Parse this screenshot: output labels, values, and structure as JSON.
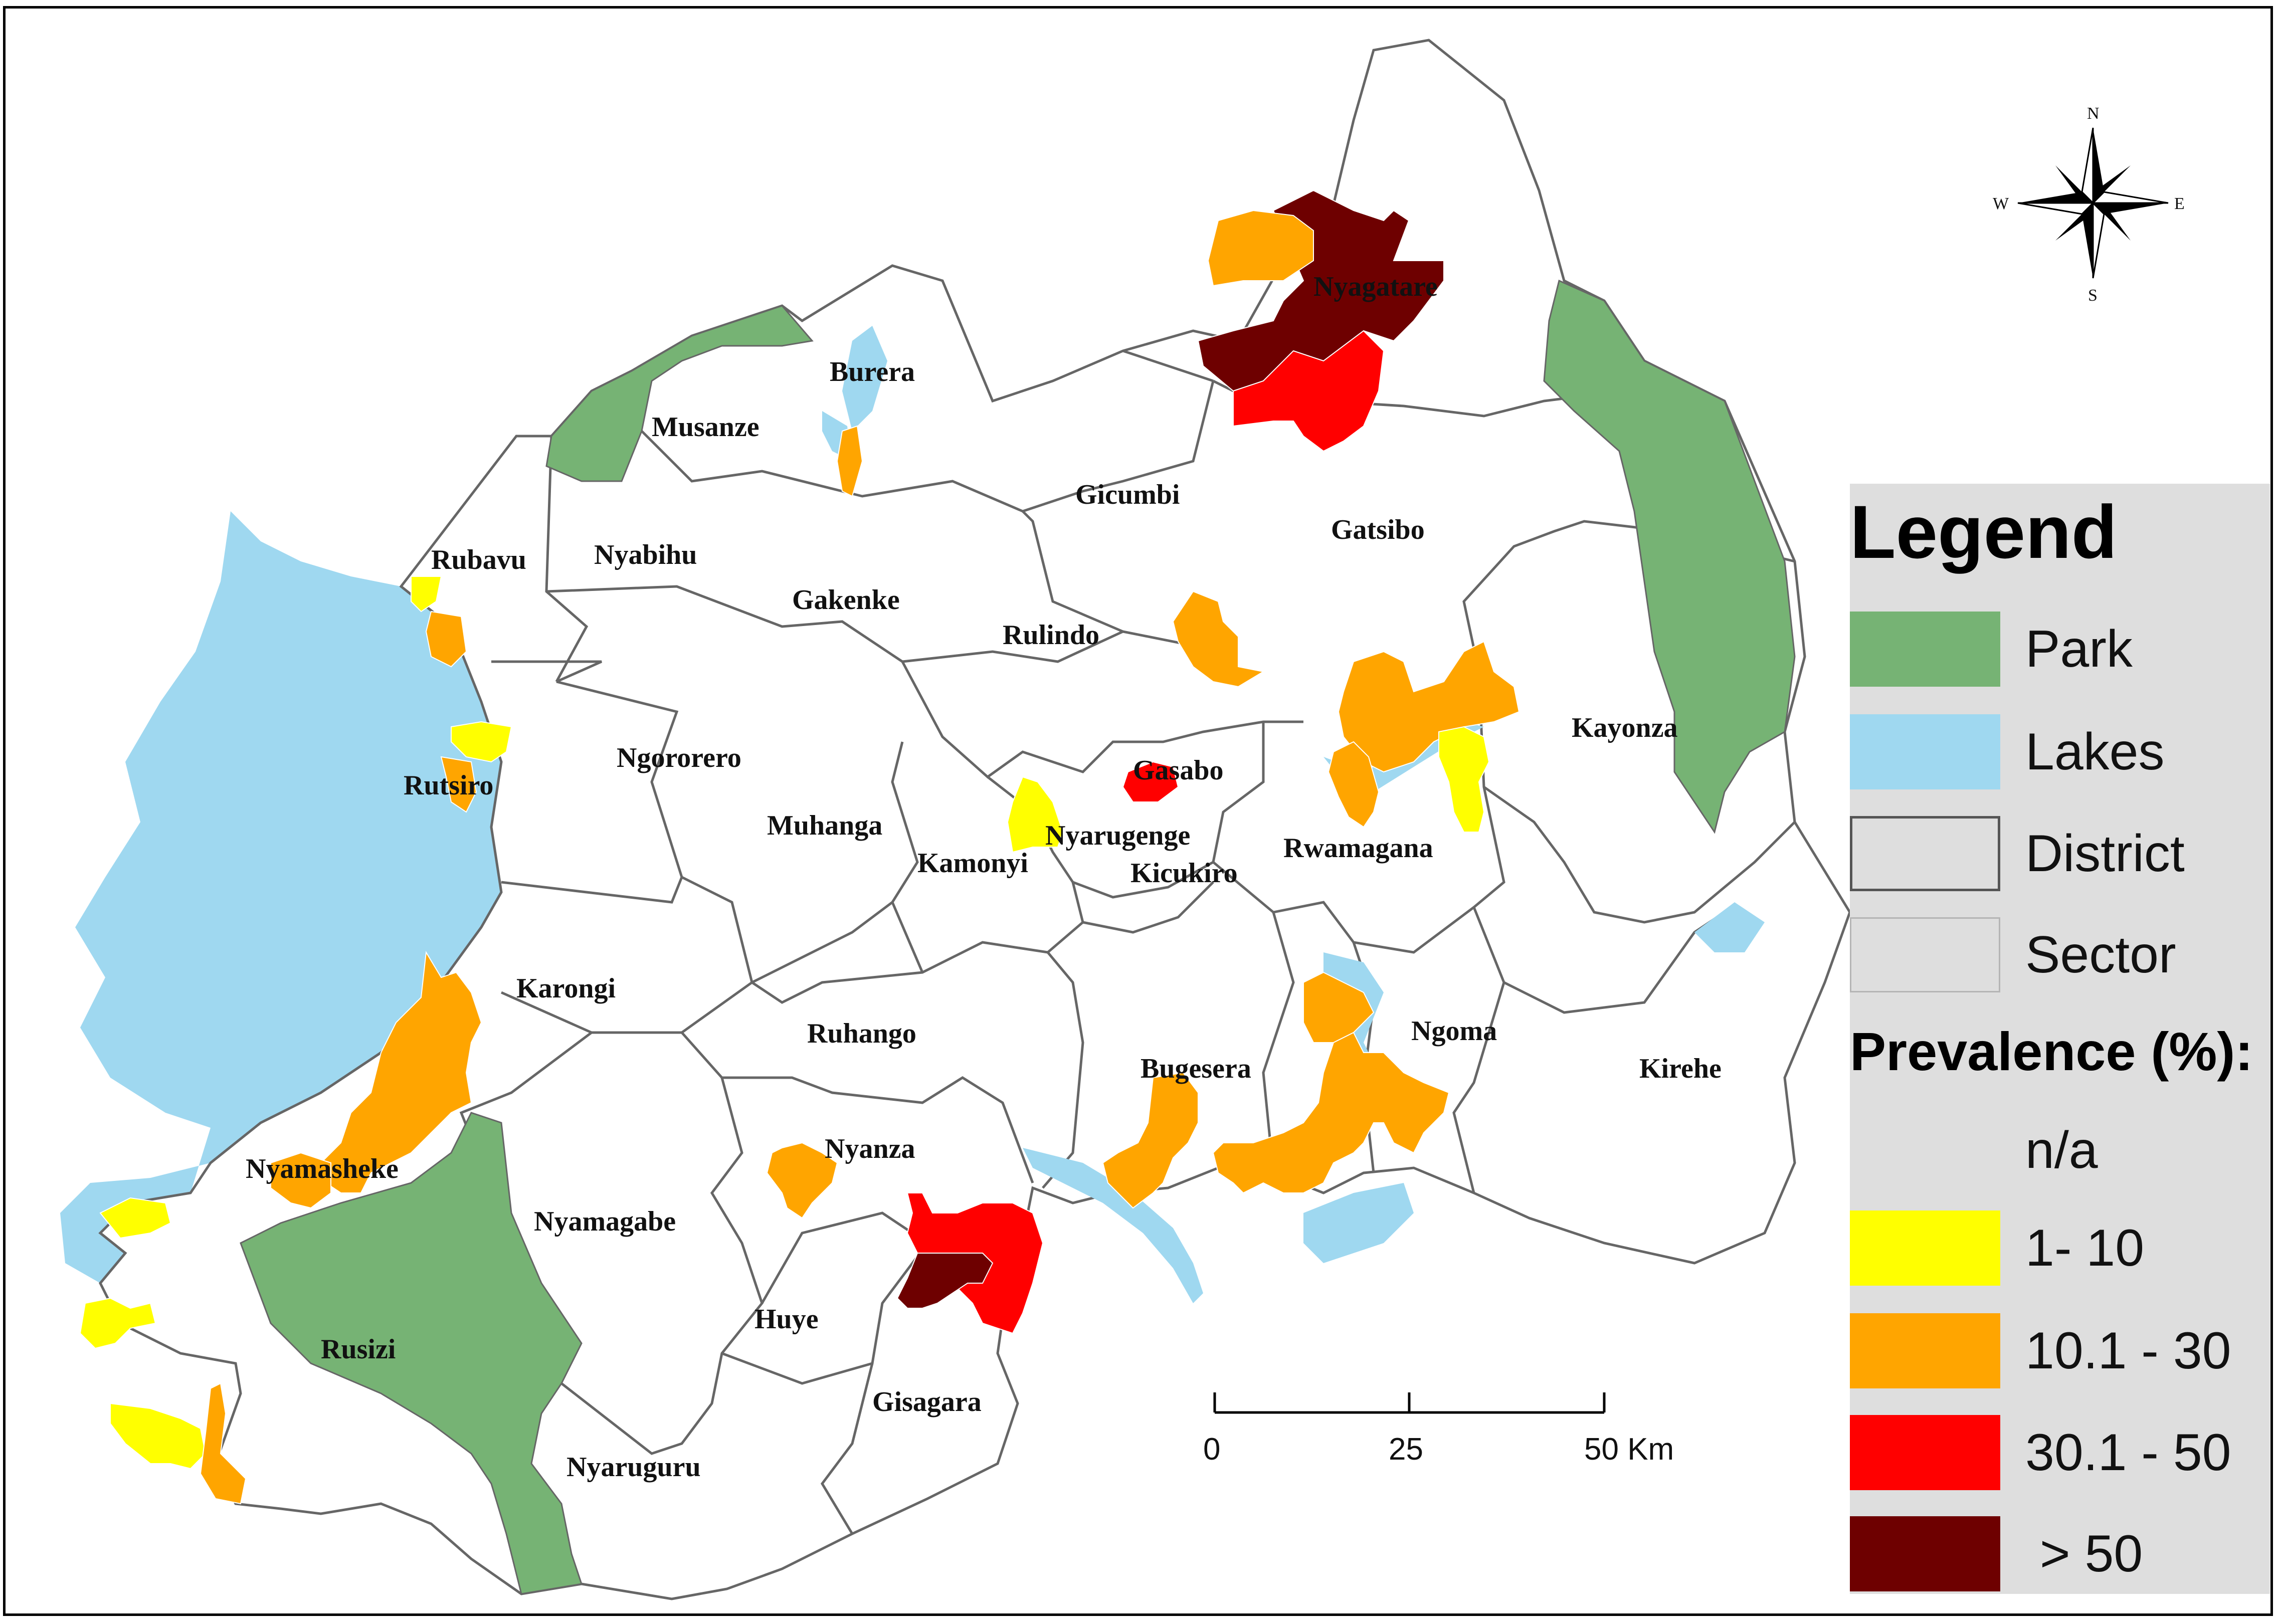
{
  "compass": {
    "n": "N",
    "s": "S",
    "e": "E",
    "w": "W"
  },
  "scale_bar": {
    "ticks": [
      "0",
      "25",
      "50 Km"
    ]
  },
  "districts": [
    {
      "name": "Nyagatare"
    },
    {
      "name": "Burera"
    },
    {
      "name": "Musanze"
    },
    {
      "name": "Gicumbi"
    },
    {
      "name": "Gatsibo"
    },
    {
      "name": "Rubavu"
    },
    {
      "name": "Nyabihu"
    },
    {
      "name": "Gakenke"
    },
    {
      "name": "Rulindo"
    },
    {
      "name": "Kayonza"
    },
    {
      "name": "Ngororero"
    },
    {
      "name": "Gasabo"
    },
    {
      "name": "Rutsiro"
    },
    {
      "name": "Muhanga"
    },
    {
      "name": "Nyarugenge"
    },
    {
      "name": "Kamonyi"
    },
    {
      "name": "Kicukiro"
    },
    {
      "name": "Rwamagana"
    },
    {
      "name": "Karongi"
    },
    {
      "name": "Ruhango"
    },
    {
      "name": "Ngoma"
    },
    {
      "name": "Bugesera"
    },
    {
      "name": "Kirehe"
    },
    {
      "name": "Nyanza"
    },
    {
      "name": "Nyamasheke"
    },
    {
      "name": "Nyamagabe"
    },
    {
      "name": "Huye"
    },
    {
      "name": "Rusizi"
    },
    {
      "name": "Gisagara"
    },
    {
      "name": "Nyaruguru"
    }
  ],
  "legend": {
    "title": "Legend",
    "items": [
      {
        "label": "Park",
        "color": "#76b374"
      },
      {
        "label": "Lakes",
        "color": "#9fd8f0"
      },
      {
        "label": "District",
        "color": "#dedede"
      },
      {
        "label": "Sector",
        "color": "#dedede"
      }
    ],
    "prevalence_title": "Prevalence (%):",
    "classes": [
      {
        "label": "n/a",
        "color": "#dedede"
      },
      {
        "label": "1- 10",
        "color": "#ffff00"
      },
      {
        "label": "10.1 - 30",
        "color": "#ffa500"
      },
      {
        "label": "30.1 - 50",
        "color": "#ff0000"
      },
      {
        "label": " > 50",
        "color": "#6e0000"
      }
    ]
  }
}
